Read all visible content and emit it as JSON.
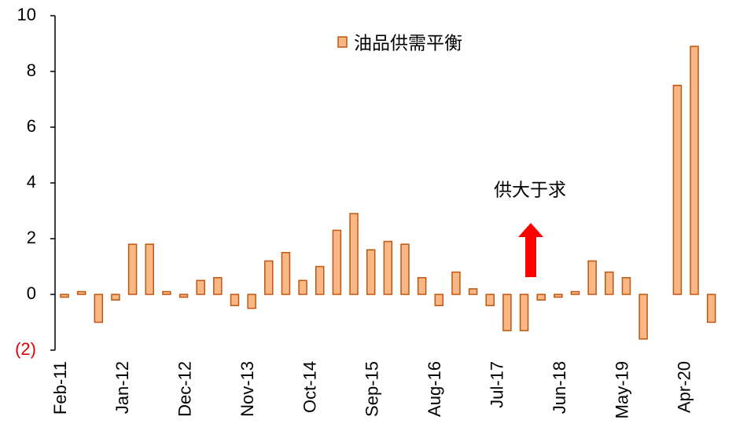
{
  "chart_data": {
    "type": "bar",
    "categories": [
      null,
      null,
      null,
      null,
      null,
      null,
      null,
      null,
      null,
      null,
      null,
      null,
      null,
      null,
      null,
      null,
      null,
      null,
      null,
      null,
      null,
      null,
      null,
      null,
      null,
      null,
      null,
      null,
      null,
      null,
      null,
      null,
      null,
      null,
      null,
      null,
      null,
      null,
      null
    ],
    "x_tick_labels": [
      "Feb-11",
      "Jan-12",
      "Dec-12",
      "Nov-13",
      "Oct-14",
      "Sep-15",
      "Aug-16",
      "Jul-17",
      "Jun-18",
      "May-19",
      "Apr-20"
    ],
    "series": [
      {
        "name": "油品供需平衡",
        "color": "#f8b784",
        "edge_color": "#c0560f",
        "values": [
          -0.1,
          0.1,
          -1.0,
          -0.2,
          1.8,
          1.8,
          0.1,
          -0.1,
          0.5,
          0.6,
          -0.4,
          -0.5,
          1.2,
          1.5,
          0.5,
          1.0,
          2.3,
          2.9,
          1.6,
          1.9,
          1.8,
          0.6,
          -0.4,
          0.8,
          0.2,
          -0.4,
          -1.3,
          -1.3,
          -0.2,
          -0.1,
          0.1,
          1.2,
          0.8,
          0.6,
          -1.6,
          0.0,
          7.5,
          8.9,
          -1.0
        ]
      }
    ],
    "ylim": [
      -2,
      10
    ],
    "yticks": [
      {
        "value": -2,
        "label": "(2)"
      },
      0,
      2,
      4,
      6,
      8,
      10
    ],
    "negative_tick_color": "#e00000",
    "annotation": "供大于求",
    "arrow_color": "#ff0000",
    "legend": "top"
  }
}
